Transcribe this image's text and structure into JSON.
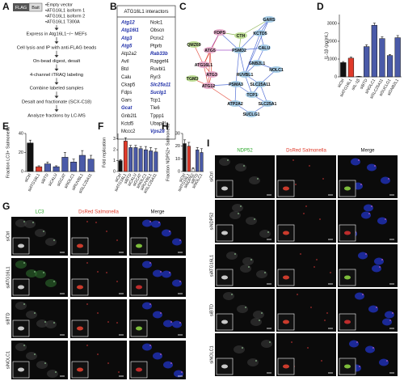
{
  "panel_a": {
    "label": "A",
    "tag_flag": "FLAG",
    "tag_bait": "Bait",
    "constructs": [
      "•Empty vector",
      "•ATG16L1 isoform 1",
      "•ATG16L1 isoform 2",
      "•ATG16L1 T300A"
    ],
    "steps": [
      "Express in Atg16L1−/− MEFs",
      "Cell lysis and IP with anti-FLAG beads",
      "On-bead digest, desalt",
      "4-channel iTRAQ labeling",
      "Combine labeled samples",
      "Desalt and fractionate (SCX-C18)",
      "Analyze fractions by LC-MS"
    ]
  },
  "panel_b": {
    "label": "B",
    "title": "ATG16L1 interactors",
    "column_1": [
      "Atg12",
      "Atg16l1",
      "Atg3",
      "Atg5",
      "Atp2a2",
      "Avil",
      "Btd",
      "Calu",
      "Ckap5",
      "Fdps",
      "Gars",
      "Gcat",
      "Gnb2l1",
      "Kctd5",
      "Mccc2"
    ],
    "column_1_highlight": [
      true,
      true,
      true,
      true,
      false,
      false,
      false,
      false,
      false,
      false,
      false,
      true,
      false,
      false,
      false
    ],
    "column_2": [
      "Nolc1",
      "Obscn",
      "Pcnx2",
      "Ptprb",
      "Rab33b",
      "Rapgef4",
      "Ruvbl1",
      "Ryr3",
      "Slc25a11",
      "Suclg1",
      "Tcp1",
      "Tle6",
      "Tppp1",
      "Ubap2l",
      "Vps28"
    ],
    "column_2_highlight": [
      false,
      false,
      false,
      false,
      true,
      false,
      false,
      false,
      true,
      true,
      false,
      false,
      false,
      false,
      true
    ],
    "highlight_color": "#1f2fa8"
  },
  "panel_c": {
    "label": "C",
    "nodes": [
      "GARS",
      "KCTD5",
      "CTH",
      "FDPS",
      "QMZ69",
      "CALU",
      "PSMD2",
      "ATG5",
      "ATG16L1",
      "GNB2L1",
      "NOLC1",
      "RUVBL1",
      "ATG3",
      "TGM3",
      "PSMA3",
      "SLC25A11",
      "ATG12",
      "TCP1",
      "SLC25A1",
      "ATP2A2",
      "SUCLG1"
    ],
    "node_colors": [
      "#9fc9e6",
      "#9fc9e6",
      "#b9dc8c",
      "#e6a6c8",
      "#b9dc8c",
      "#9fc9e6",
      "#9fc9e6",
      "#e6a6c8",
      "#e6a6c8",
      "#9fc9e6",
      "#9fc9e6",
      "#9fc9e6",
      "#e6a6c8",
      "#b9dc8c",
      "#9fc9e6",
      "#9fc9e6",
      "#e6a6c8",
      "#9fc9e6",
      "#9fc9e6",
      "#9fc9e6",
      "#9fc9e6"
    ]
  },
  "chart_data": [
    {
      "panel": "D",
      "type": "bar",
      "y_label": "IL-1β (pg/mL)",
      "categories": [
        "siCtrl",
        "siATG16L1",
        "siIL-1β",
        "siBTD",
        "siNOLC1",
        "siSLC25A11",
        "siSUCLG1",
        "siGNB2L1"
      ],
      "values": [
        800,
        1050,
        20,
        1700,
        2900,
        2150,
        1200,
        2200
      ],
      "errors": [
        60,
        60,
        10,
        100,
        120,
        100,
        60,
        120
      ],
      "colors": [
        "#111111",
        "#e03a2a",
        "#ffffff",
        "#4a5aa8",
        "#4a5aa8",
        "#4a5aa8",
        "#4a5aa8",
        "#4a5aa8"
      ],
      "ylim": [
        0,
        3500
      ],
      "yticks": [
        0,
        1000,
        2000,
        3000
      ]
    },
    {
      "panel": "E",
      "type": "bar",
      "y_label": "Fraction LC3+ Salmonella",
      "categories": [
        "siCtrl",
        "siATG16L1",
        "siBTD",
        "siCALU",
        "siGCAT",
        "siNOLC1",
        "siRUVBL1",
        "siSLC25A11"
      ],
      "values": [
        30,
        5,
        8,
        5,
        15,
        10,
        17,
        13
      ],
      "errors": [
        3,
        1,
        2,
        1,
        5,
        3,
        5,
        4
      ],
      "colors": [
        "#111111",
        "#e03a2a",
        "#4a5aa8",
        "#4a5aa8",
        "#4a5aa8",
        "#4a5aa8",
        "#4a5aa8",
        "#4a5aa8"
      ],
      "ylim": [
        0,
        40
      ],
      "yticks": [
        0,
        20,
        40
      ]
    },
    {
      "panel": "F",
      "type": "bar",
      "y_label": "Fold replication",
      "categories": [
        "siCtrl",
        "siATG16L1",
        "siBTD",
        "siCALU",
        "siGCAT",
        "siNOLC1",
        "siRUVBL1",
        "siSLC25A11"
      ],
      "values": [
        1,
        2.8,
        2.2,
        2.2,
        2.1,
        2.0,
        1.9,
        1.8
      ],
      "errors": [
        0.1,
        0.3,
        0.2,
        0.2,
        0.2,
        0.3,
        0.3,
        0.3
      ],
      "colors": [
        "#111111",
        "#e03a2a",
        "#4a5aa8",
        "#4a5aa8",
        "#4a5aa8",
        "#4a5aa8",
        "#4a5aa8",
        "#4a5aa8"
      ],
      "ylim": [
        0,
        3.5
      ],
      "yticks": [
        0,
        1,
        2,
        3
      ]
    },
    {
      "panel": "H",
      "type": "bar",
      "y_label": "Fraction NDP52+ Salmonella",
      "categories": [
        "siCtrl",
        "siATG16L1",
        "siNDP52",
        "siBTD",
        "siNOLC1"
      ],
      "values": [
        22,
        20,
        2,
        17,
        15
      ],
      "errors": [
        3,
        3,
        1,
        2,
        3
      ],
      "colors": [
        "#111111",
        "#e03a2a",
        "#ffffff",
        "#4a5aa8",
        "#4a5aa8"
      ],
      "ylim": [
        0,
        30
      ],
      "yticks": [
        0,
        10,
        20,
        30
      ]
    }
  ],
  "panel_g": {
    "label": "G",
    "columns": [
      "LC3",
      "DsRed Salmonella",
      "Merge"
    ],
    "column_colors": [
      "#2aa82a",
      "#e03a2a",
      "#111111"
    ],
    "rows": [
      "siCtrl",
      "siATG16L1",
      "siBTD",
      "siNOLC1"
    ]
  },
  "panel_i": {
    "label": "I",
    "columns": [
      "NDP52",
      "DsRed Salmonella",
      "Merge"
    ],
    "column_colors": [
      "#2aa82a",
      "#e03a2a",
      "#111111"
    ],
    "rows": [
      "siCtrl",
      "siNDP52",
      "siATG16L1",
      "siBTD",
      "siNOLC1"
    ]
  }
}
